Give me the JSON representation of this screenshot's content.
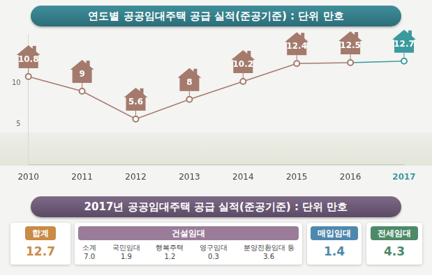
{
  "chart_data": {
    "type": "line",
    "title": "연도별 공공임대주택 공급 실적(준공기준) : 단위 만호",
    "categories": [
      "2010",
      "2011",
      "2012",
      "2013",
      "2014",
      "2015",
      "2016",
      "2017"
    ],
    "values": [
      10.8,
      9,
      5.6,
      8,
      10.2,
      12.4,
      12.5,
      12.7
    ],
    "color": "#a47a6c",
    "colors": [
      "#a47a6c",
      "#a47a6c",
      "#a47a6c",
      "#a47a6c",
      "#a47a6c",
      "#a47a6c",
      "#a47a6c",
      "#3a9a9e"
    ],
    "marker": "circle",
    "ylim": [
      0,
      16
    ],
    "yticks": [
      5,
      10
    ],
    "grid": false,
    "data_labels": true
  },
  "breakdown": {
    "title": "2017년 공공임대주택 공급 실적(준공기준) : 단위 만호",
    "cards": [
      {
        "label": "합계",
        "value": "12.7",
        "color": "#c98b45"
      },
      {
        "label": "건설임대",
        "color": "#9a7c98",
        "items": [
          {
            "label": "소계",
            "value": "7.0"
          },
          {
            "label": "국민임대",
            "value": "1.9"
          },
          {
            "label": "행복주택",
            "value": "1.2"
          },
          {
            "label": "영구임대",
            "value": "0.3"
          },
          {
            "label": "분양전환임대 등",
            "value": "3.6"
          }
        ]
      },
      {
        "label": "매입임대",
        "value": "1.4",
        "color": "#4f88ad"
      },
      {
        "label": "전세임대",
        "value": "4.3",
        "color": "#4d8a68"
      }
    ]
  }
}
